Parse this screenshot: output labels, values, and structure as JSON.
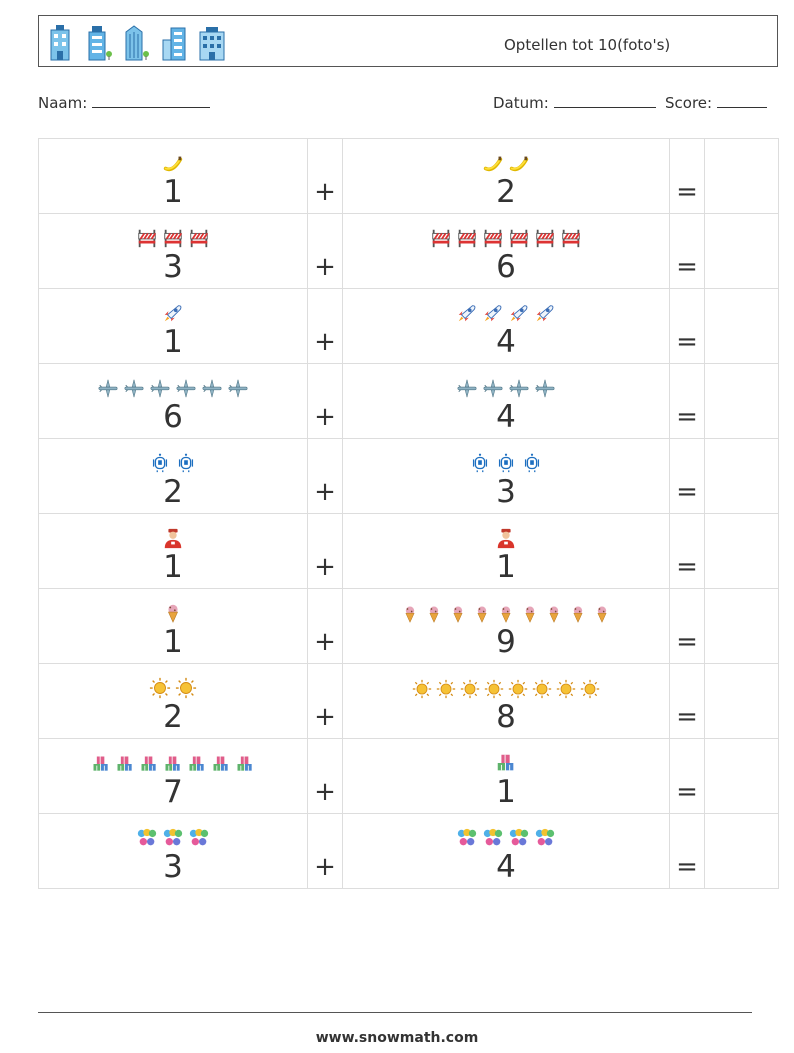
{
  "header": {
    "title": "Optellen tot 10(foto's)",
    "icons": [
      "building-icon",
      "building-icon",
      "building-icon",
      "building-icon",
      "building-icon"
    ]
  },
  "meta": {
    "name_label": "Naam:",
    "date_label": "Datum:",
    "score_label": "Score:"
  },
  "operators": {
    "plus": "+",
    "equals": "="
  },
  "problems": [
    {
      "a": 1,
      "b": 2,
      "icon": "banana-icon"
    },
    {
      "a": 3,
      "b": 6,
      "icon": "barrier-icon"
    },
    {
      "a": 1,
      "b": 4,
      "icon": "rocket-icon"
    },
    {
      "a": 6,
      "b": 4,
      "icon": "airplane-icon"
    },
    {
      "a": 2,
      "b": 3,
      "icon": "robot-icon"
    },
    {
      "a": 1,
      "b": 1,
      "icon": "delivery-person-icon"
    },
    {
      "a": 1,
      "b": 9,
      "icon": "ice-cream-icon"
    },
    {
      "a": 2,
      "b": 8,
      "icon": "sun-icon"
    },
    {
      "a": 7,
      "b": 1,
      "icon": "gift-boxes-icon"
    },
    {
      "a": 3,
      "b": 4,
      "icon": "balloons-icon"
    }
  ],
  "footer": {
    "url": "www.snowmath.com"
  }
}
